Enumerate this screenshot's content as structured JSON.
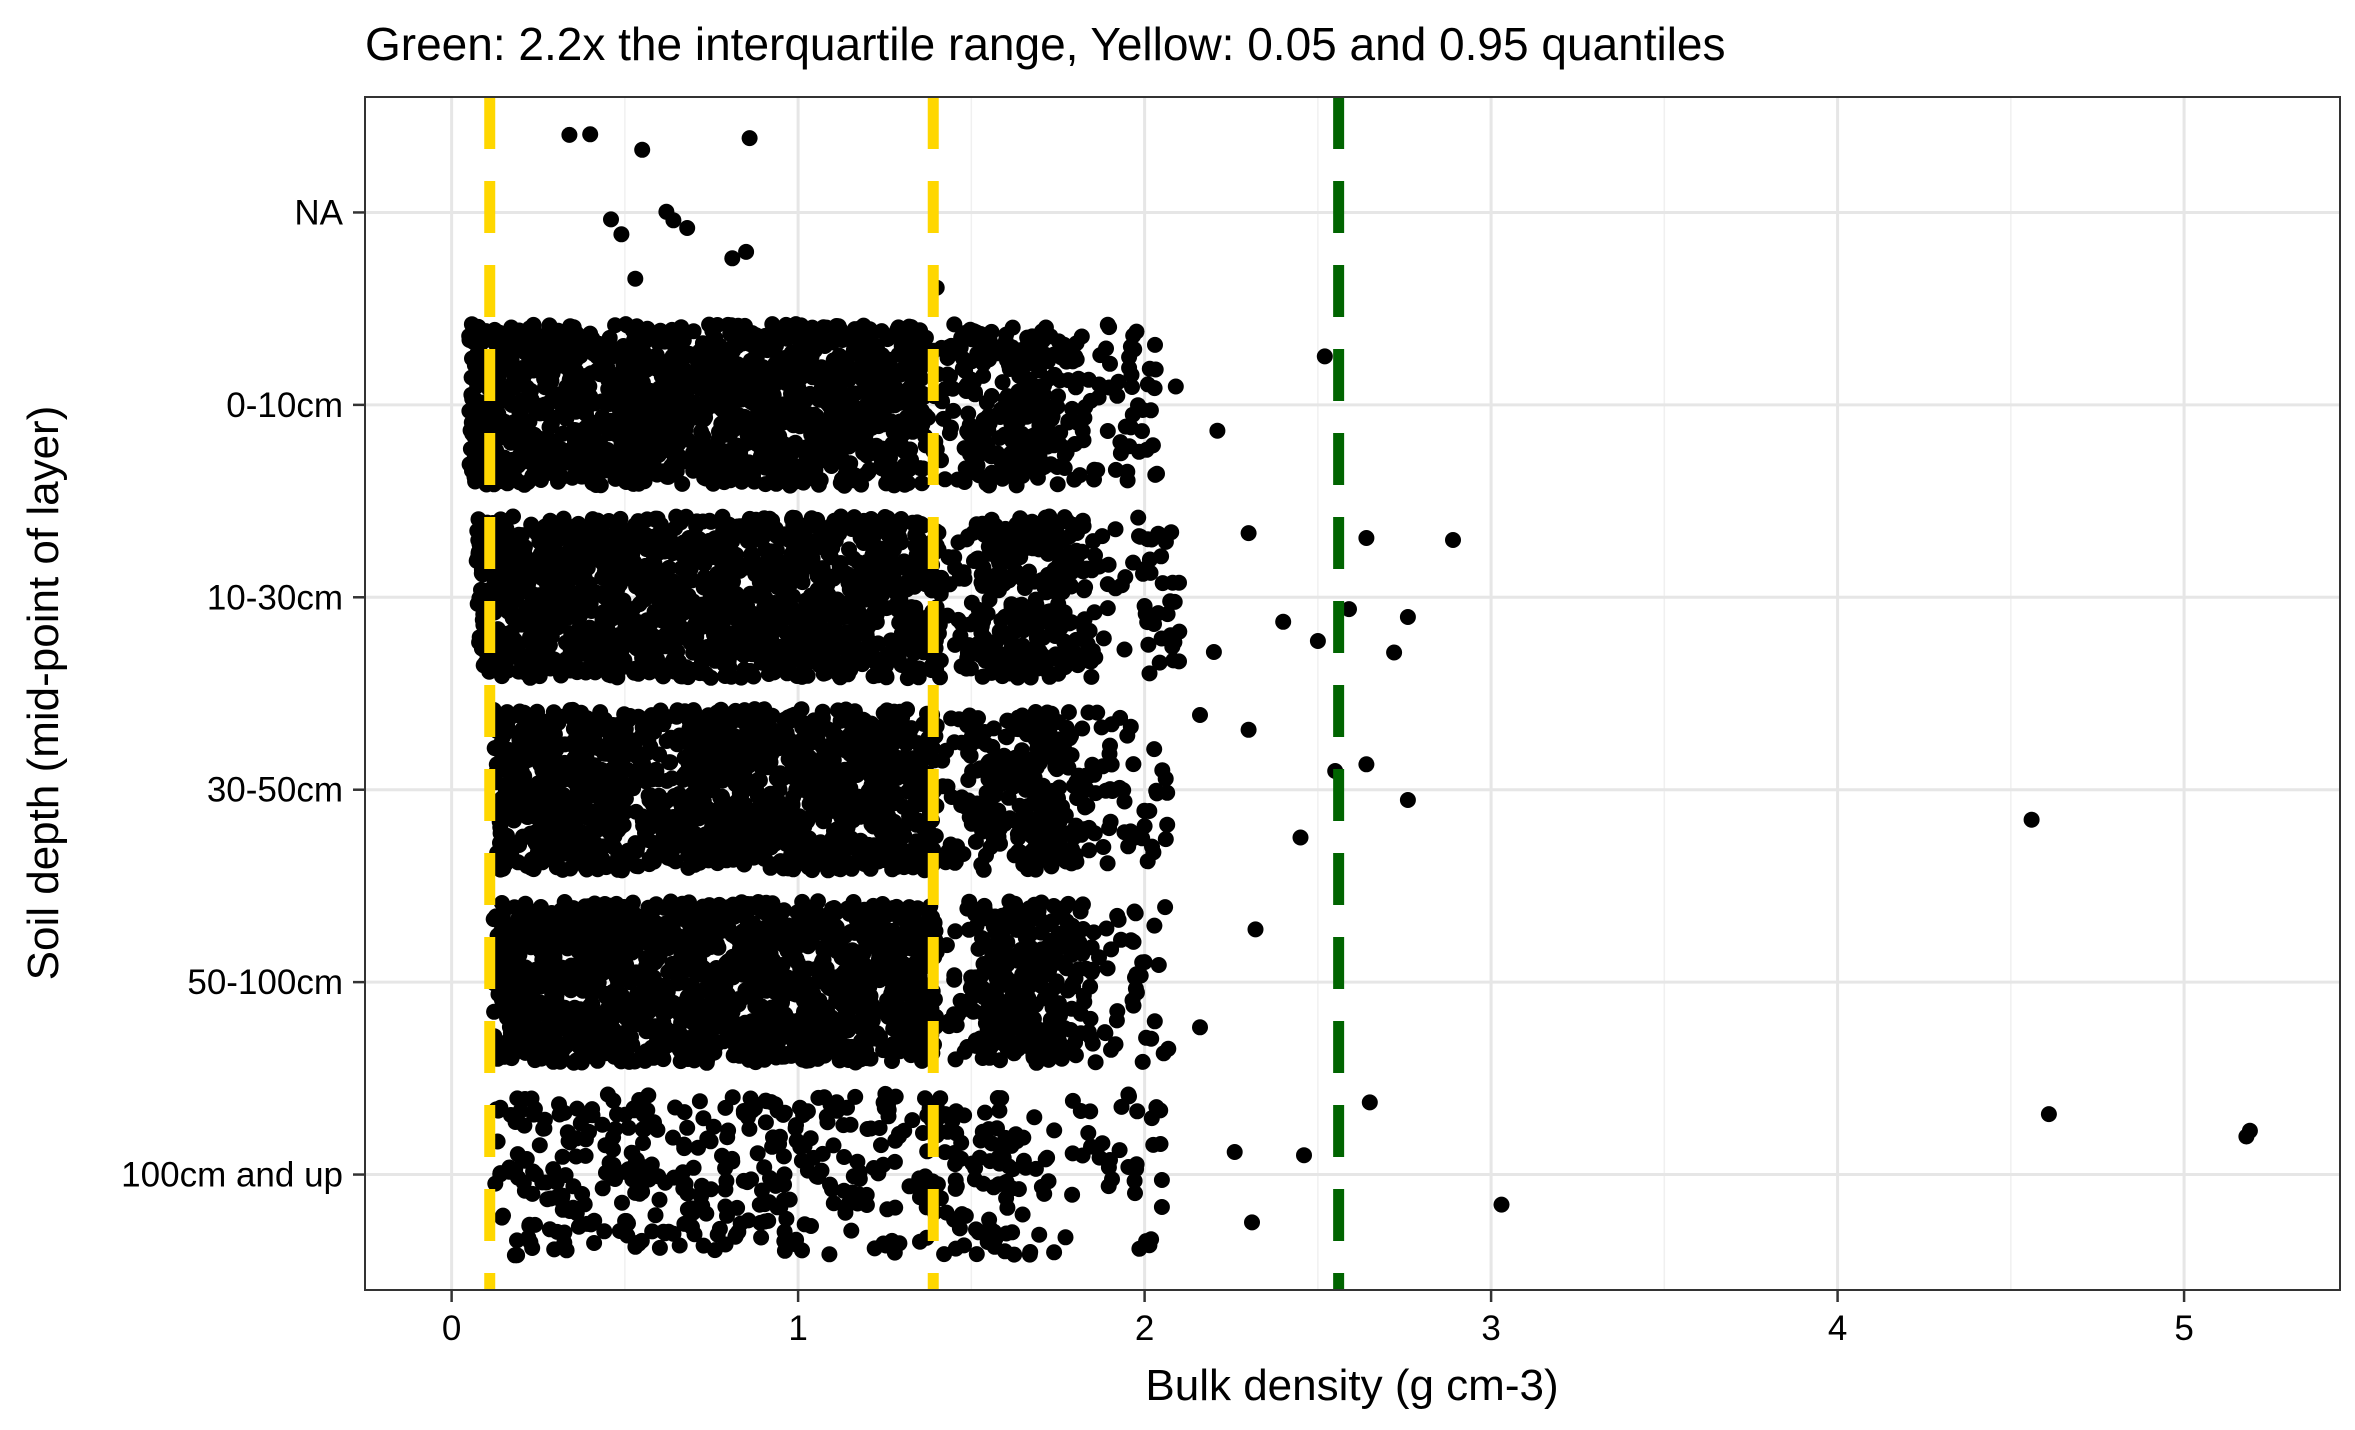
{
  "chart_data": {
    "type": "scatter",
    "subtype": "jittered strip plot",
    "title": "Green: 2.2x the interquartile range, Yellow: 0.05 and 0.95 quantiles",
    "xlabel": "Bulk density (g cm-3)",
    "ylabel": "Soil depth (mid-point of layer)",
    "xlim": [
      -0.25,
      5.45
    ],
    "x_ticks": [
      0,
      1,
      2,
      3,
      4,
      5
    ],
    "x_tick_labels": [
      "0",
      "1",
      "2",
      "3",
      "4",
      "5"
    ],
    "categories": [
      "100cm and up",
      "50-100cm",
      "30-50cm",
      "10-30cm",
      "0-10cm",
      "NA"
    ],
    "grid": true,
    "reference_lines": [
      {
        "color": "yellow",
        "hex": "#FFD700",
        "style": "dashed",
        "x": 0.11,
        "meaning": "0.05 quantile"
      },
      {
        "color": "yellow",
        "hex": "#FFD700",
        "style": "dashed",
        "x": 1.39,
        "meaning": "0.95 quantile"
      },
      {
        "color": "green",
        "hex": "#006400",
        "style": "dashed",
        "x": 2.56,
        "meaning": "2.2x the interquartile range"
      }
    ],
    "point_color": "#000000",
    "series": [
      {
        "category": "NA",
        "x_range": [
          0.33,
          1.4
        ],
        "points": [
          0.34,
          0.4,
          0.46,
          0.49,
          0.53,
          0.55,
          0.62,
          0.64,
          0.68,
          0.81,
          0.86,
          0.85,
          1.4
        ]
      },
      {
        "category": "0-10cm",
        "x_range": [
          0.0,
          2.52
        ],
        "dense_x_range": [
          0.05,
          1.7
        ],
        "outliers": [
          1.75,
          1.8,
          1.9,
          1.93,
          1.95,
          2.03,
          2.09,
          2.21,
          2.52
        ]
      },
      {
        "category": "10-30cm",
        "x_range": [
          0.05,
          2.89
        ],
        "dense_x_range": [
          0.07,
          1.75
        ],
        "outliers": [
          2.1,
          2.2,
          2.3,
          2.4,
          2.5,
          2.59,
          2.64,
          2.72,
          2.76,
          2.89
        ]
      },
      {
        "category": "30-50cm",
        "x_range": [
          0.1,
          4.56
        ],
        "dense_x_range": [
          0.12,
          1.72
        ],
        "outliers": [
          1.82,
          1.9,
          2.0,
          2.16,
          2.3,
          2.45,
          2.55,
          2.64,
          2.76,
          4.56
        ]
      },
      {
        "category": "50-100cm",
        "x_range": [
          0.04,
          2.32
        ],
        "dense_x_range": [
          0.12,
          1.72
        ],
        "outliers": [
          1.8,
          1.92,
          2.0,
          2.16,
          2.32
        ]
      },
      {
        "category": "100cm and up",
        "x_range": [
          0.09,
          5.19
        ],
        "sparse": true,
        "outliers": [
          2.05,
          2.26,
          2.31,
          2.46,
          2.65,
          3.03,
          4.61,
          5.18,
          5.19
        ]
      }
    ]
  }
}
